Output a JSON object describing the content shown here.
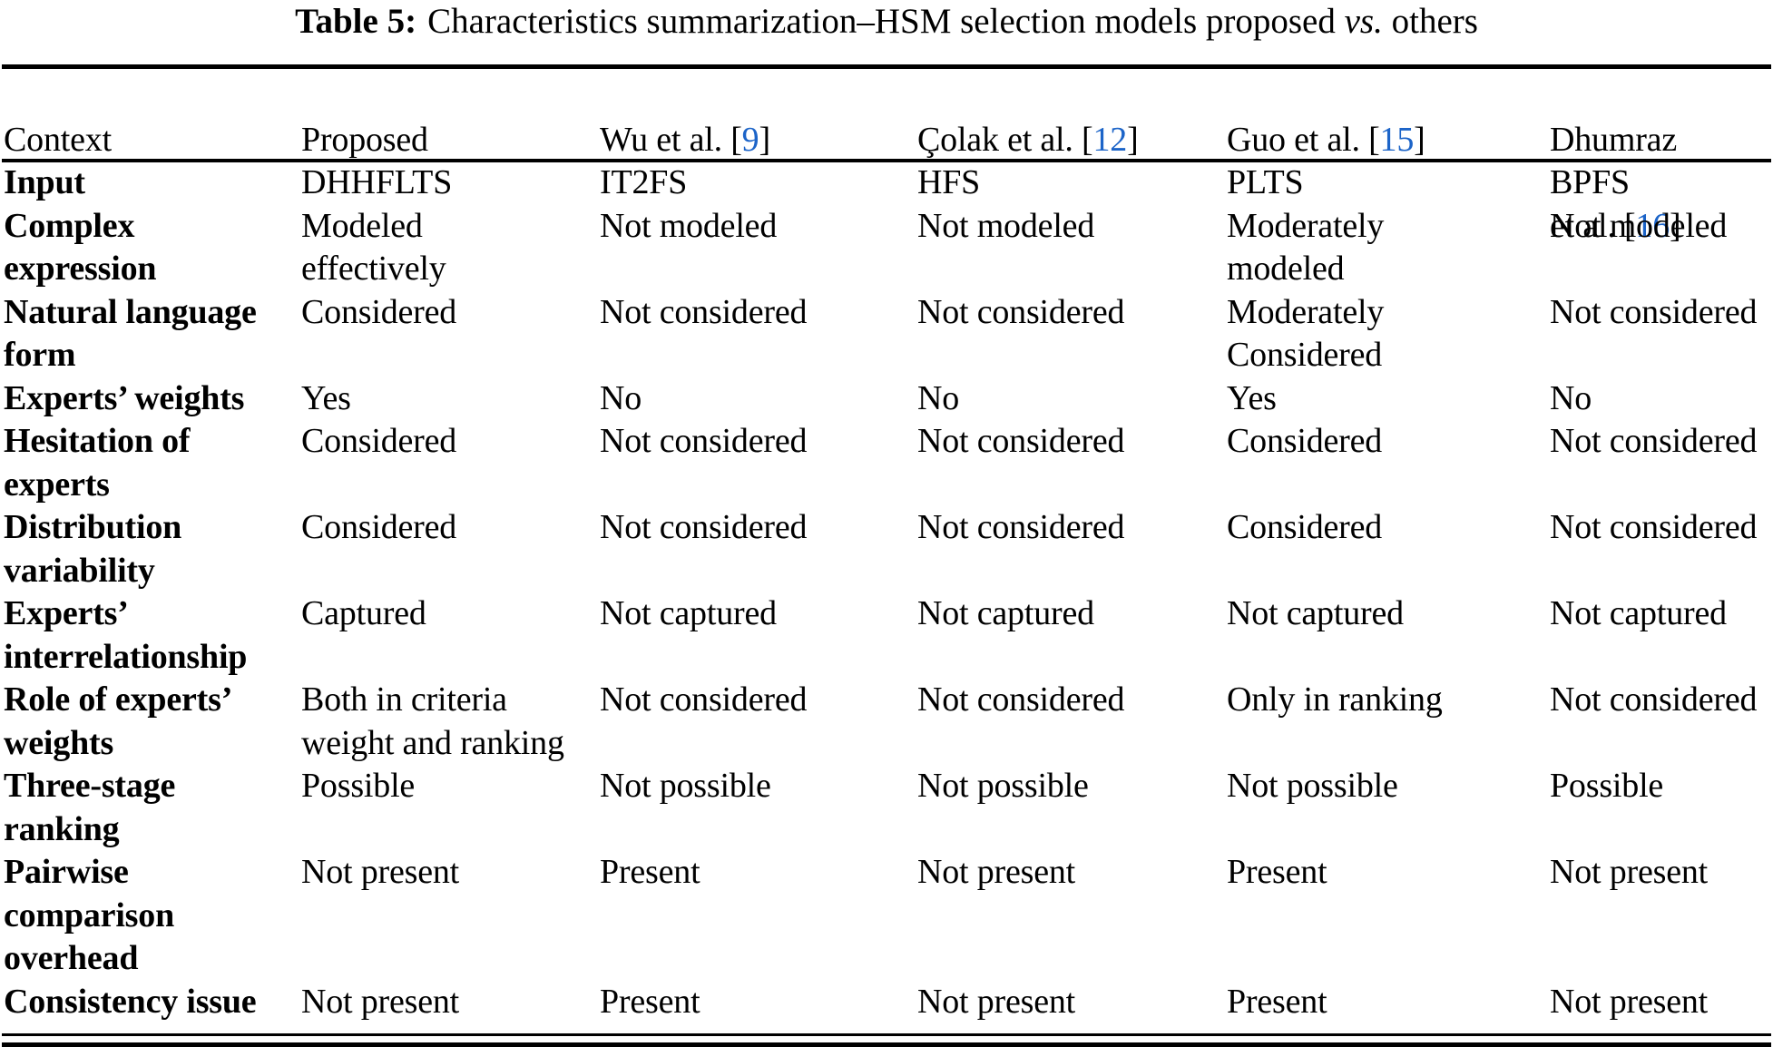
{
  "caption": {
    "label": "Table 5:",
    "text_before_vs": "Characteristics summarization–HSM selection models proposed ",
    "vs": "vs.",
    "text_after_vs": " others"
  },
  "link_color": "#1C64C8",
  "header": {
    "cols": [
      {
        "text": "Context"
      },
      {
        "text": "Proposed"
      },
      {
        "prefix": "Wu et al. [",
        "cite": "9",
        "suffix": "]"
      },
      {
        "prefix": "Çolak et al. [",
        "cite": "12",
        "suffix": "]"
      },
      {
        "prefix": "Guo et al. [",
        "cite": "15",
        "suffix": "]"
      },
      {
        "line1": "Dhumraz",
        "prefix": "et al. [",
        "cite": "16",
        "suffix": "]"
      }
    ]
  },
  "rows": [
    {
      "label": "Input",
      "cells": [
        "DHHFLTS",
        "IT2FS",
        "HFS",
        "PLTS",
        "BPFS"
      ]
    },
    {
      "label": "Complex\nexpression",
      "cells": [
        "Modeled\neffectively",
        "Not modeled",
        "Not modeled",
        "Moderately\nmodeled",
        "Not modeled"
      ]
    },
    {
      "label": "Natural language\nform",
      "cells": [
        "Considered",
        "Not considered",
        "Not considered",
        "Moderately\nConsidered",
        "Not considered"
      ]
    },
    {
      "label": "Experts’ weights",
      "cells": [
        "Yes",
        "No",
        "No",
        "Yes",
        "No"
      ]
    },
    {
      "label": "Hesitation of\nexperts",
      "cells": [
        "Considered",
        "Not considered",
        "Not considered",
        "Considered",
        "Not considered"
      ]
    },
    {
      "label": "Distribution\nvariability",
      "cells": [
        "Considered",
        "Not considered",
        "Not considered",
        "Considered",
        "Not considered"
      ]
    },
    {
      "label": "Experts’\ninterrelationship",
      "cells": [
        "Captured",
        "Not captured",
        "Not captured",
        "Not captured",
        "Not captured"
      ]
    },
    {
      "label": "Role of experts’\nweights",
      "cells": [
        "Both in criteria\nweight and ranking",
        "Not considered",
        "Not considered",
        "Only in ranking",
        "Not considered"
      ]
    },
    {
      "label": "Three-stage\nranking",
      "cells": [
        "Possible",
        "Not possible",
        "Not possible",
        "Not possible",
        "Possible"
      ]
    },
    {
      "label": "Pairwise\ncomparison\noverhead",
      "cells": [
        "Not present",
        "Present",
        "Not present",
        "Present",
        "Not present"
      ]
    },
    {
      "label": "Consistency issue",
      "cells": [
        "Not present",
        "Present",
        "Not present",
        "Present",
        "Not present"
      ]
    }
  ]
}
